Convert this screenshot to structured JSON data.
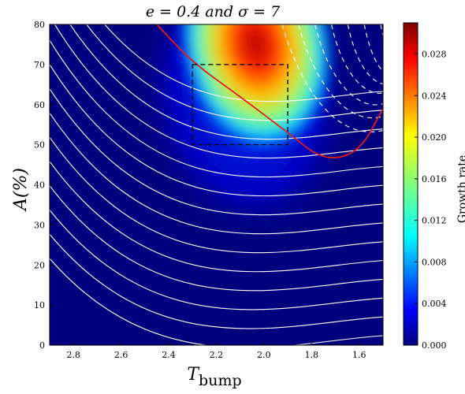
{
  "chart_data": {
    "type": "heatmap",
    "title": "e = 0.4 and σ = 7",
    "xlabel": "T",
    "xlabel_subscript": "bump",
    "ylabel": "A(%)",
    "xlim": [
      2.9,
      1.5
    ],
    "ylim": [
      0,
      80
    ],
    "x_reversed": true,
    "xticks": [
      2.8,
      2.6,
      2.4,
      2.2,
      2.0,
      1.8,
      1.6
    ],
    "xtick_labels": [
      "2.8",
      "2.6",
      "2.4",
      "2.2",
      "2.0",
      "1.8",
      "1.6"
    ],
    "yticks": [
      0,
      10,
      20,
      30,
      40,
      50,
      60,
      70,
      80
    ],
    "ytick_labels": [
      "0",
      "10",
      "20",
      "30",
      "40",
      "50",
      "60",
      "70",
      "80"
    ],
    "colorbar": {
      "label": "Growth rate",
      "colormap": "jet",
      "range": [
        0.0,
        0.031
      ],
      "ticks": [
        0.0,
        0.004,
        0.008,
        0.012,
        0.016,
        0.02,
        0.024,
        0.028
      ],
      "tick_labels": [
        "0.000",
        "0.004",
        "0.008",
        "0.012",
        "0.016",
        "0.020",
        "0.024",
        "0.028"
      ]
    },
    "background_color": "#00007f",
    "growth_rate_peak": {
      "T": 2.05,
      "A": 80,
      "value": 0.031
    },
    "white_contours_solid": 14,
    "white_contours_dashed": 7,
    "critical_curve": {
      "color": "#e41a1c",
      "points": [
        [
          2.45,
          80
        ],
        [
          2.3,
          70.5
        ],
        [
          2.1,
          62
        ],
        [
          1.9,
          53
        ],
        [
          1.75,
          46
        ],
        [
          1.6,
          48
        ],
        [
          1.5,
          59
        ]
      ]
    },
    "dashed_box": {
      "x": [
        2.3,
        1.9
      ],
      "y": [
        50,
        70
      ],
      "color": "#000000"
    }
  }
}
